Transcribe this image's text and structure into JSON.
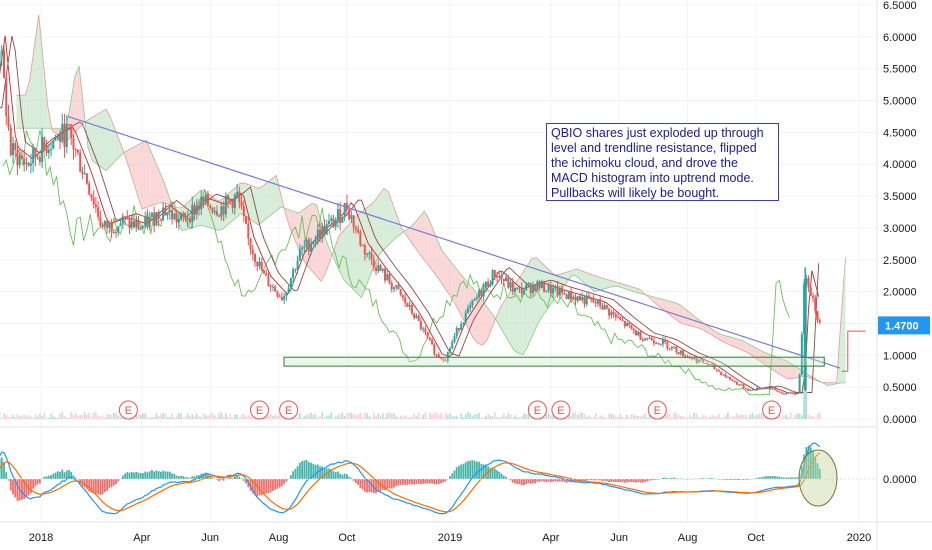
{
  "chart_data": {
    "type": "candlestick",
    "symbol": "QBIO",
    "last_price": "1.4700",
    "last_price_color": "#2196f3",
    "x_tick_labels": [
      "2018",
      "Apr",
      "Jun",
      "Aug",
      "Oct",
      "2019",
      "Apr",
      "Jun",
      "Aug",
      "Oct",
      "2020"
    ],
    "x_tick_dates": [
      "2018-01-01",
      "2018-04-01",
      "2018-06-01",
      "2018-08-01",
      "2018-10-01",
      "2019-01-01",
      "2019-04-01",
      "2019-06-01",
      "2019-08-01",
      "2019-10-01",
      "2020-01-01"
    ],
    "price_axis": {
      "ticks": [
        "6.5000",
        "6.0000",
        "5.5000",
        "5.0000",
        "4.5000",
        "4.0000",
        "3.5000",
        "3.0000",
        "2.5000",
        "2.0000",
        "1.5000",
        "1.0000",
        "0.5000",
        "0.0000"
      ],
      "range": [
        0,
        6.5
      ]
    },
    "macd_axis": {
      "ticks": [
        "0.0000"
      ]
    },
    "price_series": [
      {
        "date": "2017-11-15",
        "close": 4.7
      },
      {
        "date": "2017-11-25",
        "close": 5.9
      },
      {
        "date": "2017-12-05",
        "close": 4.2
      },
      {
        "date": "2017-12-20",
        "close": 4.0
      },
      {
        "date": "2018-01-05",
        "close": 4.3
      },
      {
        "date": "2018-01-25",
        "close": 4.5
      },
      {
        "date": "2018-02-10",
        "close": 3.8
      },
      {
        "date": "2018-02-25",
        "close": 3.0
      },
      {
        "date": "2018-03-15",
        "close": 3.1
      },
      {
        "date": "2018-04-01",
        "close": 3.0
      },
      {
        "date": "2018-04-20",
        "close": 3.3
      },
      {
        "date": "2018-05-05",
        "close": 3.1
      },
      {
        "date": "2018-05-25",
        "close": 3.4
      },
      {
        "date": "2018-06-10",
        "close": 3.3
      },
      {
        "date": "2018-06-25",
        "close": 3.5
      },
      {
        "date": "2018-07-05",
        "close": 2.8
      },
      {
        "date": "2018-07-20",
        "close": 2.2
      },
      {
        "date": "2018-08-05",
        "close": 1.9
      },
      {
        "date": "2018-08-20",
        "close": 2.6
      },
      {
        "date": "2018-09-05",
        "close": 2.9
      },
      {
        "date": "2018-09-20",
        "close": 3.1
      },
      {
        "date": "2018-10-01",
        "close": 3.35
      },
      {
        "date": "2018-10-15",
        "close": 2.7
      },
      {
        "date": "2018-11-01",
        "close": 2.3
      },
      {
        "date": "2018-11-15",
        "close": 2.0
      },
      {
        "date": "2018-12-01",
        "close": 1.6
      },
      {
        "date": "2018-12-20",
        "close": 1.0
      },
      {
        "date": "2018-12-28",
        "close": 0.95
      },
      {
        "date": "2019-01-10",
        "close": 1.5
      },
      {
        "date": "2019-01-25",
        "close": 1.9
      },
      {
        "date": "2019-02-10",
        "close": 2.3
      },
      {
        "date": "2019-03-01",
        "close": 2.0
      },
      {
        "date": "2019-03-20",
        "close": 2.1
      },
      {
        "date": "2019-04-05",
        "close": 2.0
      },
      {
        "date": "2019-04-25",
        "close": 1.9
      },
      {
        "date": "2019-05-15",
        "close": 1.8
      },
      {
        "date": "2019-06-01",
        "close": 1.55
      },
      {
        "date": "2019-06-20",
        "close": 1.3
      },
      {
        "date": "2019-07-10",
        "close": 1.2
      },
      {
        "date": "2019-07-30",
        "close": 1.0
      },
      {
        "date": "2019-08-20",
        "close": 0.85
      },
      {
        "date": "2019-09-10",
        "close": 0.6
      },
      {
        "date": "2019-09-25",
        "close": 0.45
      },
      {
        "date": "2019-10-10",
        "close": 0.5
      },
      {
        "date": "2019-10-25",
        "close": 0.4
      },
      {
        "date": "2019-11-08",
        "close": 0.4
      },
      {
        "date": "2019-11-14",
        "close": 2.35
      },
      {
        "date": "2019-11-20",
        "close": 1.95
      },
      {
        "date": "2019-11-27",
        "close": 1.47
      }
    ],
    "trendline": {
      "start": {
        "date": "2018-01-25",
        "price": 4.75
      },
      "end": {
        "date": "2019-12-15",
        "price": 0.8
      }
    },
    "support_zone": {
      "date_start": "2018-08-01",
      "date_end": "2019-12-01",
      "price_low": 0.83,
      "price_high": 0.97
    },
    "earnings_markers": [
      {
        "label": "E",
        "date": "2018-03-20"
      },
      {
        "label": "E",
        "date": "2018-07-15"
      },
      {
        "label": "E",
        "date": "2018-08-10"
      },
      {
        "label": "E",
        "date": "2019-03-20"
      },
      {
        "label": "E",
        "date": "2019-04-10"
      },
      {
        "label": "E",
        "date": "2019-07-05"
      },
      {
        "label": "E",
        "date": "2019-10-15"
      }
    ],
    "annotation": "QBIO shares just exploded up through level and trendline resistance, flipped the ichimoku cloud, and drove the MACD histogram into uptrend mode. Pullbacks will likely be bought.",
    "colors": {
      "up": "#26a69a",
      "down": "#ef5350",
      "trendline": "#7b7bd6",
      "cloud_bear": "#f8c8c8",
      "cloud_bull": "#c8e6c9",
      "support": "#2e7d32",
      "macd_line": "#2196f3",
      "signal_line": "#ff6d00",
      "highlight": "#c5d8a0"
    }
  }
}
